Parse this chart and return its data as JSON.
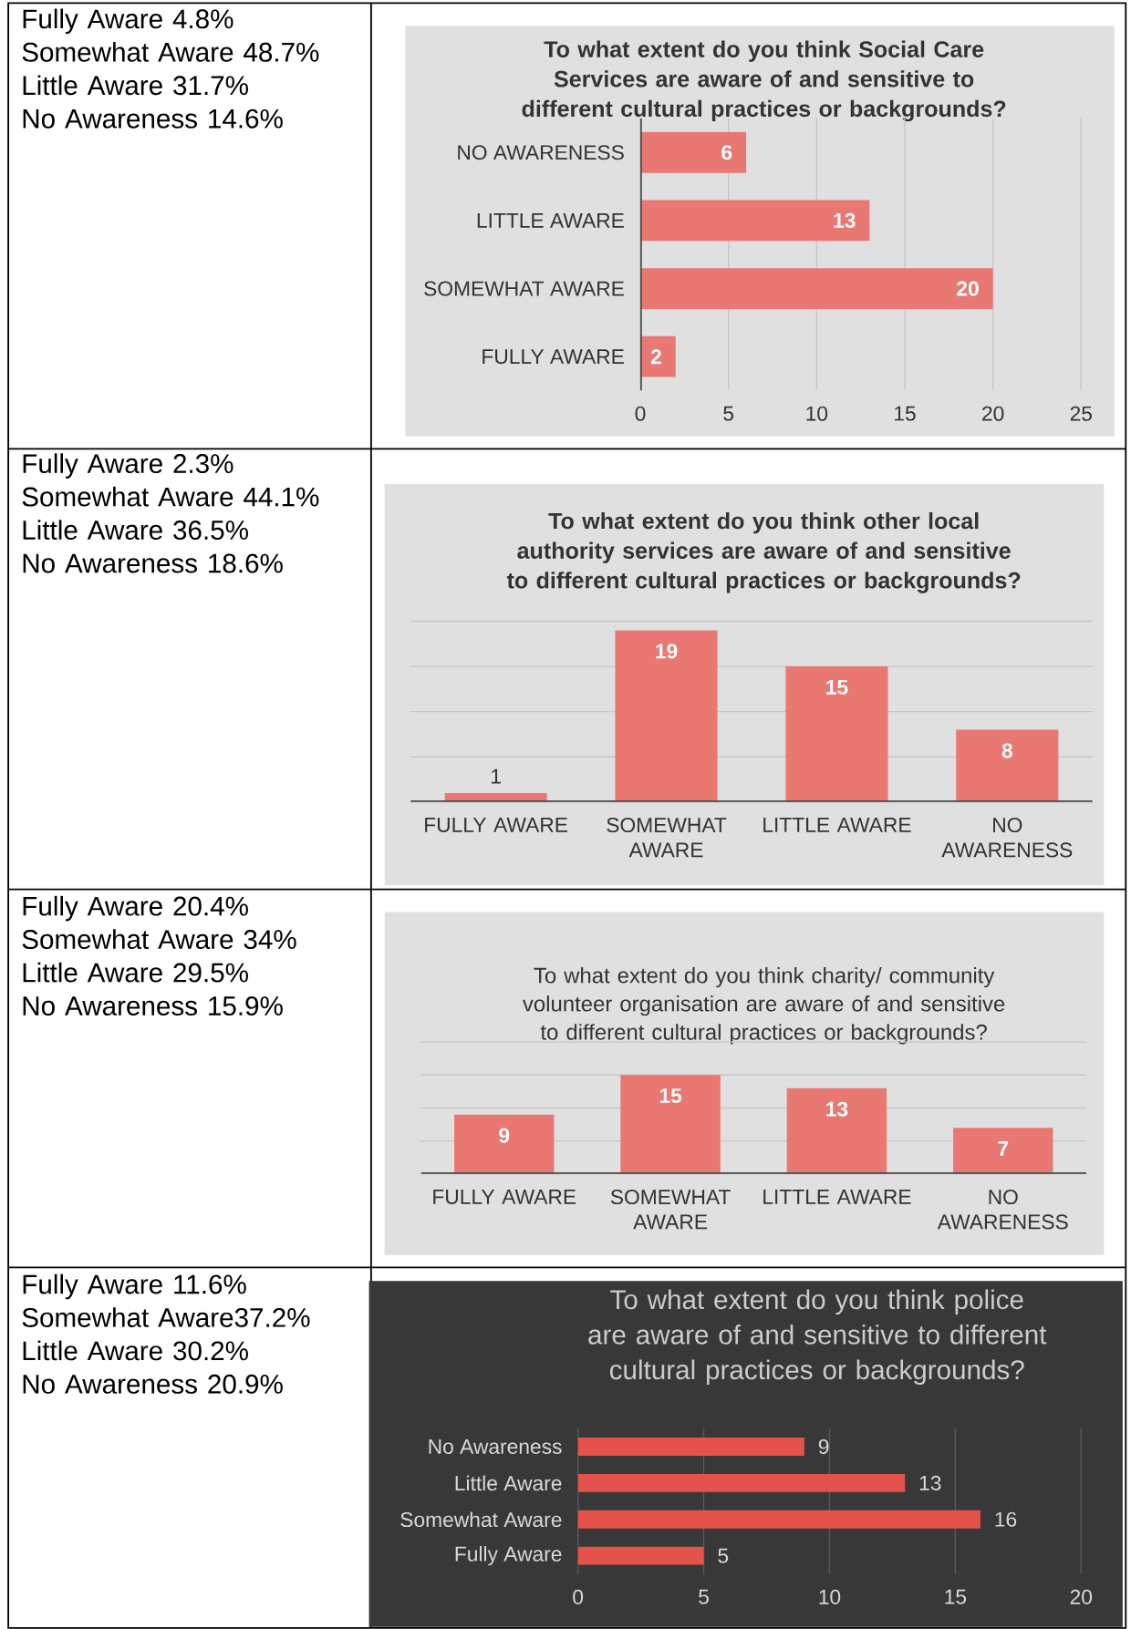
{
  "chart_data": [
    {
      "type": "other",
      "annotations": [
        "Fully Aware 4.8%",
        "Somewhat Aware 48.7%",
        "Little Aware 31.7%",
        "No Awareness 14.6%"
      ]
    },
    {
      "type": "bar",
      "orientation": "horizontal",
      "title": "To what extent do you think Social Care Services are aware of and sensitive to different cultural practices or backgrounds?",
      "categories": [
        "NO AWARENESS",
        "LITTLE AWARE",
        "SOMEWHAT AWARE",
        "FULLY AWARE"
      ],
      "values": [
        6,
        13,
        20,
        2
      ],
      "color": "#e97772",
      "xlim": [
        0,
        25
      ],
      "xticks": [
        0,
        5,
        10,
        15,
        20,
        25
      ],
      "grid": "x",
      "data_labels": true
    },
    {
      "type": "other",
      "annotations": [
        "Fully Aware 2.3%",
        "Somewhat Aware 44.1%",
        "Little Aware 36.5%",
        "No Awareness 18.6%"
      ]
    },
    {
      "type": "bar",
      "title": "To what extent do you think other local authority services are aware of and sensitive to different cultural practices or backgrounds?",
      "categories": [
        "FULLY AWARE",
        "SOMEWHAT AWARE",
        "LITTLE AWARE",
        "NO AWARENESS"
      ],
      "values": [
        1,
        19,
        15,
        8
      ],
      "color": "#e97772",
      "ylim": [
        0,
        20
      ],
      "yticks": [
        {
          "value": 0,
          "label": null
        },
        {
          "value": 5,
          "label": null
        },
        {
          "value": 10,
          "label": null
        },
        {
          "value": 15,
          "label": null
        },
        {
          "value": 20,
          "label": null
        }
      ],
      "tick_labels": "x",
      "grid": "y",
      "data_labels": true
    },
    {
      "type": "other",
      "annotations": [
        "Fully Aware 20.4%",
        "Somewhat Aware 34%",
        "Little Aware 29.5%",
        "No Awareness 15.9%"
      ]
    },
    {
      "type": "bar",
      "title": "To what extent do you think charity/ community volunteer organisation are aware of and sensitive to different cultural practices or backgrounds?",
      "categories": [
        "FULLY AWARE",
        "SOMEWHAT AWARE",
        "LITTLE AWARE",
        "NO AWARENESS"
      ],
      "values": [
        9,
        15,
        13,
        7
      ],
      "color": "#e97772",
      "ylim": [
        0,
        20
      ],
      "yticks": [
        {
          "value": 0,
          "label": null
        },
        {
          "value": 5,
          "label": null
        },
        {
          "value": 10,
          "label": null
        },
        {
          "value": 15,
          "label": null
        },
        {
          "value": 20,
          "label": null
        }
      ],
      "tick_labels": "x",
      "grid": "y",
      "data_labels": true
    },
    {
      "type": "other",
      "annotations": [
        "Fully Aware 11.6%",
        "Somewhat Aware37.2%",
        "Little Aware 30.2%",
        "No Awareness 20.9%"
      ]
    },
    {
      "type": "bar",
      "orientation": "horizontal",
      "title": "To what extent do you think police are aware of and sensitive to different cultural practices or backgrounds?",
      "categories": [
        "No Awareness",
        "Little Aware",
        "Somewhat Aware",
        "Fully Aware"
      ],
      "values": [
        9,
        13,
        16,
        5
      ],
      "color": "#e4524c",
      "xlim": [
        0,
        20
      ],
      "xticks": [
        0,
        5,
        10,
        15,
        20
      ],
      "grid": "x",
      "data_labels": true
    }
  ]
}
